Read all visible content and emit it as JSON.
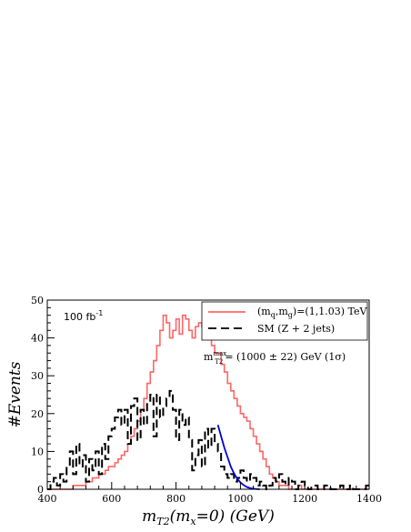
{
  "chart_data": {
    "type": "line",
    "xlabel": {
      "main": "m",
      "sub1": "T2",
      "mid": "(m",
      "sub2": "x",
      "end": "=0) (GeV)"
    },
    "ylabel": "#Events",
    "xlim": [
      400,
      1400
    ],
    "ylim": [
      0,
      50
    ],
    "xticks": [
      400,
      600,
      800,
      1000,
      1200,
      1400
    ],
    "yticks": [
      0,
      10,
      20,
      30,
      40,
      50
    ],
    "bin_width": 10,
    "luminosity": {
      "base": "100 fb",
      "exp": "-1"
    },
    "legend_position": "top-right",
    "series": [
      {
        "name": "(m_q,m_g)=(1,1.03) TeV",
        "legend": {
          "p1": "(m",
          "s1": "q",
          "p2": ",m",
          "s2": "g",
          "p3": ")=(1,1.03) TeV"
        },
        "color": "#ff6666",
        "style": "solid",
        "x_start": 400,
        "values": [
          0,
          0,
          0,
          0,
          0,
          0,
          0,
          0,
          1,
          1,
          1,
          1,
          2,
          2,
          3,
          3,
          4,
          4,
          5,
          6,
          6,
          7,
          8,
          9,
          10,
          12,
          14,
          16,
          18,
          21,
          24,
          28,
          31,
          34,
          38,
          42,
          46,
          44,
          40,
          42,
          45,
          41,
          46,
          45,
          42,
          40,
          43,
          44,
          43,
          44,
          40,
          38,
          36,
          36,
          33,
          31,
          28,
          26,
          24,
          22,
          20,
          19,
          18,
          16,
          14,
          12,
          10,
          8,
          6,
          4,
          3,
          2,
          1,
          1,
          1,
          0,
          0,
          0,
          1,
          0,
          0,
          0,
          0,
          0,
          0,
          0,
          0,
          0,
          0,
          0,
          0,
          0,
          0,
          0,
          0,
          0,
          0,
          0,
          0,
          0
        ]
      },
      {
        "name": "SM (Z + 2 jets)",
        "legend": {
          "p1": "SM (Z + 2 jets)"
        },
        "color": "#000000",
        "style": "dashed",
        "x_start": 400,
        "values": [
          0,
          2,
          3,
          1,
          4,
          2,
          6,
          10,
          4,
          12,
          6,
          9,
          2,
          8,
          5,
          10,
          4,
          12,
          8,
          14,
          16,
          19,
          21,
          17,
          21,
          12,
          22,
          24,
          13,
          21,
          17,
          23,
          25,
          14,
          25,
          19,
          22,
          24,
          26,
          21,
          13,
          21,
          17,
          19,
          13,
          5,
          9,
          13,
          6,
          16,
          11,
          16,
          12,
          10,
          6,
          4,
          3,
          4,
          2,
          3,
          5,
          3,
          2,
          4,
          3,
          1,
          2,
          1,
          0,
          1,
          3,
          2,
          4,
          2,
          1,
          3,
          2,
          0,
          1,
          2,
          1,
          0,
          1,
          1,
          0,
          0,
          1,
          1,
          0,
          0,
          0,
          1,
          0,
          0,
          1,
          0,
          0,
          0,
          0,
          1
        ]
      }
    ],
    "fit": {
      "color": "#0000dd",
      "x": [
        930,
        940,
        950,
        960,
        970,
        980,
        990,
        1000,
        1010,
        1020,
        1030,
        1040,
        1050,
        1060
      ],
      "y": [
        17,
        14,
        11,
        8.5,
        6,
        4.2,
        2.8,
        1.8,
        1.1,
        0.6,
        0.3,
        0.15,
        0.05,
        0
      ]
    },
    "annotation": {
      "m": "m",
      "sup": "max",
      "sub": "T2",
      "text": "=  (1000 ± 22) GeV (1σ)"
    }
  }
}
